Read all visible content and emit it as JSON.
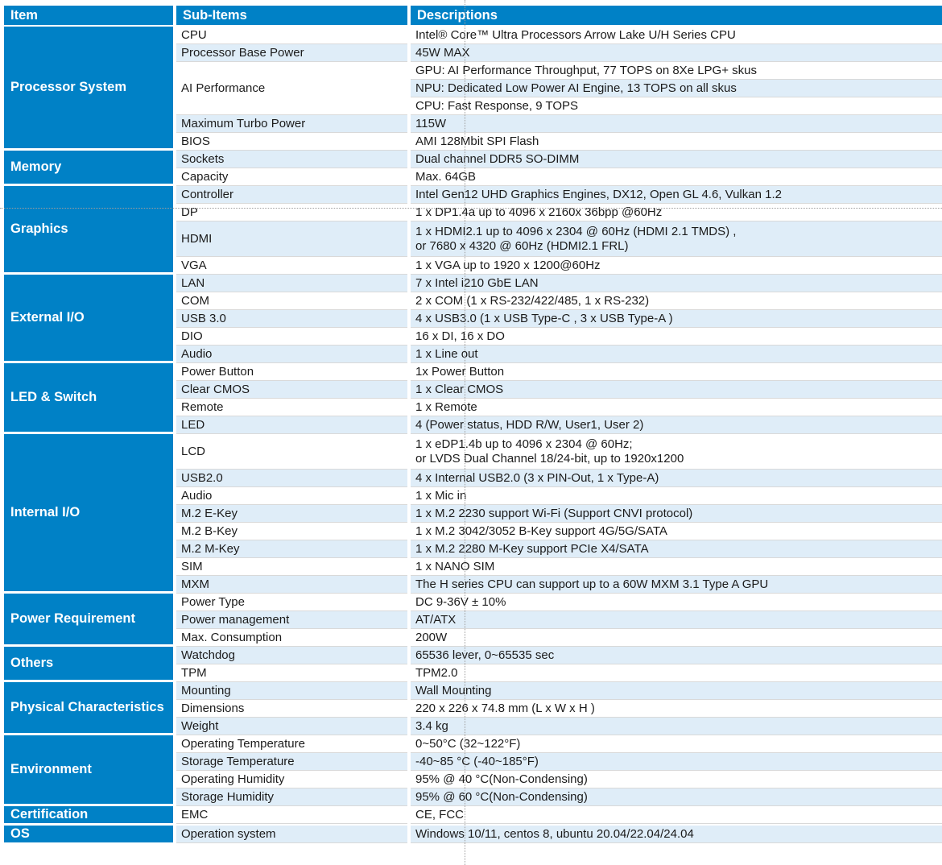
{
  "colors": {
    "brand_blue": "#0081C6",
    "stripe_light_blue": "#DFEDF8",
    "row_separator": "#D9D9D9",
    "header_text": "#FFFFFF",
    "body_text": "#1B1B1B"
  },
  "table": {
    "columns": [
      "Item",
      "Sub-Items",
      "Descriptions"
    ],
    "sections": [
      {
        "item": "Processor System",
        "subitems": [
          {
            "label": "CPU",
            "descs": [
              "Intel® Core™ Ultra Processors Arrow Lake U/H Series CPU"
            ]
          },
          {
            "label": "Processor Base Power",
            "descs": [
              "45W MAX"
            ]
          },
          {
            "label": "AI Performance",
            "descs": [
              "GPU: AI Performance Throughput, 77 TOPS on 8Xe LPG+ skus",
              "NPU: Dedicated Low Power AI Engine, 13 TOPS on all skus",
              "CPU: Fast Response, 9 TOPS"
            ]
          },
          {
            "label": "Maximum Turbo Power",
            "descs": [
              "115W"
            ]
          },
          {
            "label": "BIOS",
            "descs": [
              "AMI 128Mbit SPI Flash"
            ]
          }
        ]
      },
      {
        "item": "Memory",
        "subitems": [
          {
            "label": "Sockets",
            "descs": [
              "Dual channel  DDR5 SO-DIMM"
            ]
          },
          {
            "label": "Capacity",
            "descs": [
              "Max. 64GB"
            ]
          }
        ]
      },
      {
        "item": "Graphics",
        "subitems": [
          {
            "label": "Controller",
            "descs": [
              "Intel Gen12 UHD Graphics Engines, DX12, Open GL 4.6, Vulkan 1.2"
            ]
          },
          {
            "label": "DP",
            "descs": [
              "1 x DP1.4a up to 4096 x 2160x 36bpp @60Hz"
            ]
          },
          {
            "label": "HDMI",
            "descs": [
              "1 x HDMI2.1 up to 4096 x 2304 @ 60Hz (HDMI 2.1 TMDS) ,\nor 7680 x 4320 @ 60Hz (HDMI2.1 FRL)"
            ]
          },
          {
            "label": "VGA",
            "descs": [
              "1 x VGA up to 1920 x 1200@60Hz"
            ]
          }
        ]
      },
      {
        "item": "External I/O",
        "subitems": [
          {
            "label": "LAN",
            "descs": [
              "7 x Intel i210 GbE LAN"
            ]
          },
          {
            "label": "COM",
            "descs": [
              "2 x COM (1 x RS-232/422/485, 1 x RS-232)"
            ]
          },
          {
            "label": "USB 3.0",
            "descs": [
              "4 x USB3.0 (1 x USB Type-C , 3 x USB Type-A )"
            ]
          },
          {
            "label": "DIO",
            "descs": [
              "16 x DI, 16 x DO"
            ]
          },
          {
            "label": "Audio",
            "descs": [
              "1 x  Line out"
            ]
          }
        ]
      },
      {
        "item": "LED & Switch",
        "subitems": [
          {
            "label": "Power Button",
            "descs": [
              "1x Power Button"
            ]
          },
          {
            "label": "Clear CMOS",
            "descs": [
              "1 x Clear CMOS"
            ]
          },
          {
            "label": "Remote",
            "descs": [
              "1 x Remote"
            ]
          },
          {
            "label": "LED",
            "descs": [
              "4 (Power status, HDD R/W, User1, User 2)"
            ]
          }
        ]
      },
      {
        "item": "Internal I/O",
        "subitems": [
          {
            "label": "LCD",
            "descs": [
              "1 x eDP1.4b up to 4096 x 2304 @ 60Hz;\n or LVDS Dual Channel 18/24-bit, up to 1920x1200"
            ]
          },
          {
            "label": "USB2.0",
            "descs": [
              "4 x Internal USB2.0 (3 x PIN-Out, 1 x Type-A)"
            ]
          },
          {
            "label": "Audio",
            "descs": [
              "1 x  Mic in"
            ]
          },
          {
            "label": "M.2 E-Key",
            "descs": [
              "1 x M.2 2230 support Wi-Fi (Support CNVI protocol)"
            ]
          },
          {
            "label": "M.2 B-Key",
            "descs": [
              "1 x M.2 3042/3052 B-Key support 4G/5G/SATA"
            ]
          },
          {
            "label": "M.2 M-Key",
            "descs": [
              "1 x M.2 2280 M-Key support PCIe X4/SATA"
            ]
          },
          {
            "label": "SIM",
            "descs": [
              "1 x NANO SIM"
            ]
          },
          {
            "label": "MXM",
            "descs": [
              "The H series CPU can support up to a 60W MXM 3.1 Type A GPU"
            ]
          }
        ]
      },
      {
        "item": "Power Requirement",
        "subitems": [
          {
            "label": "Power Type",
            "descs": [
              "DC 9-36V ± 10%"
            ]
          },
          {
            "label": "Power management",
            "descs": [
              "AT/ATX"
            ]
          },
          {
            "label": "Max. Consumption",
            "descs": [
              "200W"
            ]
          }
        ]
      },
      {
        "item": "Others",
        "subitems": [
          {
            "label": "Watchdog",
            "descs": [
              "65536 lever, 0~65535 sec"
            ]
          },
          {
            "label": "TPM",
            "descs": [
              "TPM2.0"
            ]
          }
        ]
      },
      {
        "item": "Physical Characteristics",
        "subitems": [
          {
            "label": "Mounting",
            "descs": [
              "Wall Mounting"
            ]
          },
          {
            "label": "Dimensions",
            "descs": [
              "220 x 226 x 74.8 mm (L x W x H )"
            ]
          },
          {
            "label": "Weight",
            "descs": [
              "3.4 kg"
            ]
          }
        ]
      },
      {
        "item": "Environment",
        "subitems": [
          {
            "label": "Operating Temperature",
            "descs": [
              "0~50°C (32~122°F)"
            ]
          },
          {
            "label": "Storage Temperature",
            "descs": [
              "-40~85 °C  (-40~185°F)"
            ]
          },
          {
            "label": "Operating Humidity",
            "descs": [
              "95% @ 40 °C(Non-Condensing)"
            ]
          },
          {
            "label": "Storage Humidity",
            "descs": [
              "95% @ 60 °C(Non-Condensing)"
            ]
          }
        ]
      },
      {
        "item": "Certification",
        "subitems": [
          {
            "label": "EMC",
            "descs": [
              "CE, FCC"
            ]
          }
        ]
      },
      {
        "item": "OS",
        "subitems": [
          {
            "label": "Operation system",
            "descs": [
              "Windows 10/11, centos 8, ubuntu 20.04/22.04/24.04"
            ]
          }
        ]
      }
    ]
  }
}
